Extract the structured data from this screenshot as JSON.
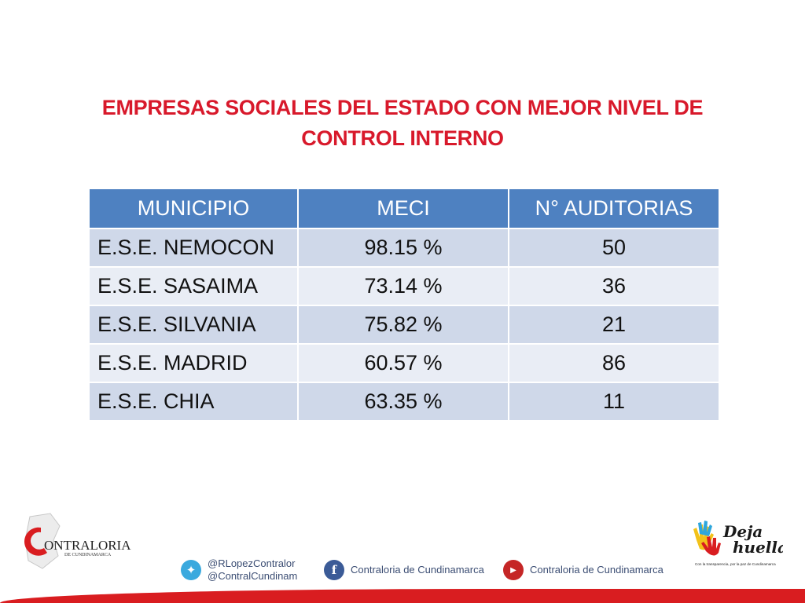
{
  "title": {
    "line1": "EMPRESAS SOCIALES DEL ESTADO CON MEJOR NIVEL DE",
    "line2": "CONTROL INTERNO"
  },
  "table": {
    "headers": [
      "MUNICIPIO",
      "MECI",
      "N° AUDITORIAS"
    ],
    "rows": [
      [
        "E.S.E. NEMOCON",
        "98.15 %",
        "50"
      ],
      [
        "E.S.E. SASAIMA",
        "73.14 %",
        "36"
      ],
      [
        "E.S.E. SILVANIA",
        "75.82 %",
        "21"
      ],
      [
        "E.S.E. MADRID",
        "60.57 %",
        "86"
      ],
      [
        "E.S.E. CHIA",
        "63.35 %",
        "11"
      ]
    ]
  },
  "footer": {
    "twitter": {
      "line1": "@RLopezContralor",
      "line2": "@ContralCundinam"
    },
    "facebook": "Contraloria de Cundinamarca",
    "youtube": "Contraloria de Cundinamarca",
    "logo_left": {
      "main": "ONTRALORIA",
      "sub": "DE CUNDINAMARCA"
    },
    "logo_right": {
      "line1": "Deja",
      "line2": "huella",
      "tagline": "Con la transparencia, por la paz de Cundinamarca"
    }
  },
  "colors": {
    "title": "#d8192b",
    "header_bg": "#4e81c1",
    "row_odd": "#cfd8e9",
    "row_even": "#e9edf5",
    "bottom_bar": "#d91d20"
  }
}
